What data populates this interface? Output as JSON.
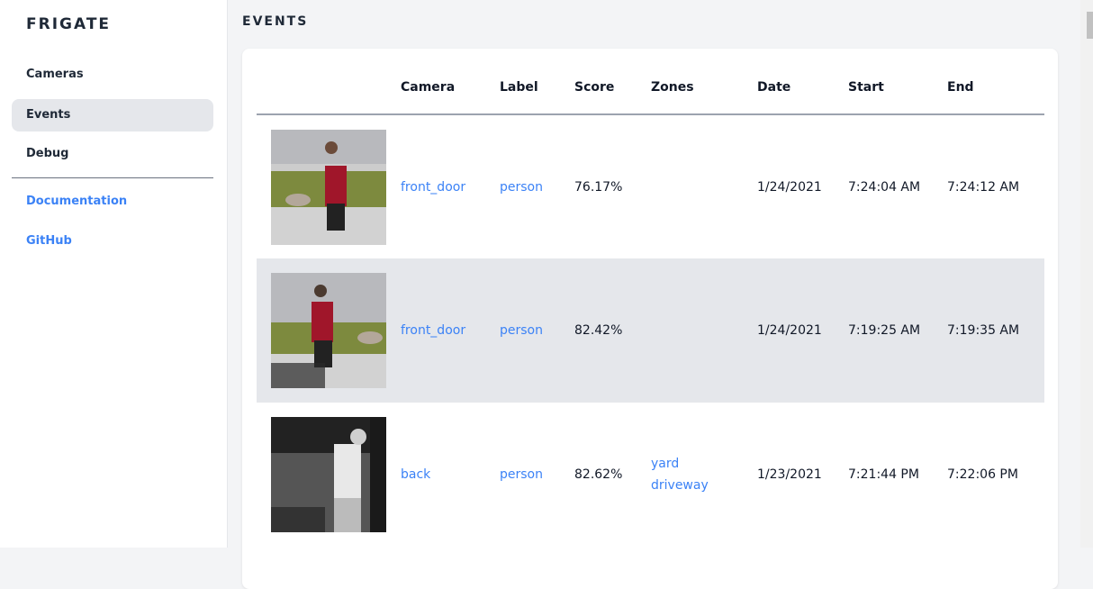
{
  "sidebar": {
    "brand": "FRIGATE",
    "items": [
      {
        "label": "Cameras"
      },
      {
        "label": "Events",
        "active": true
      },
      {
        "label": "Debug"
      }
    ],
    "links": [
      {
        "label": "Documentation"
      },
      {
        "label": "GitHub"
      }
    ]
  },
  "page": {
    "title": "EVENTS"
  },
  "table": {
    "headers": {
      "camera": "Camera",
      "label": "Label",
      "score": "Score",
      "zones": "Zones",
      "date": "Date",
      "start": "Start",
      "end": "End"
    },
    "rows": [
      {
        "camera": "front_door",
        "label": "person",
        "score": "76.17%",
        "zones": [],
        "date": "1/24/2021",
        "start": "7:24:04 AM",
        "end": "7:24:12 AM"
      },
      {
        "camera": "front_door",
        "label": "person",
        "score": "82.42%",
        "zones": [],
        "date": "1/24/2021",
        "start": "7:19:25 AM",
        "end": "7:19:35 AM"
      },
      {
        "camera": "back",
        "label": "person",
        "score": "82.62%",
        "zones": [
          "yard",
          "driveway"
        ],
        "date": "1/23/2021",
        "start": "7:21:44 PM",
        "end": "7:22:06 PM"
      }
    ]
  },
  "colors": {
    "link": "#3b82f6",
    "active_bg": "#e5e7eb"
  }
}
